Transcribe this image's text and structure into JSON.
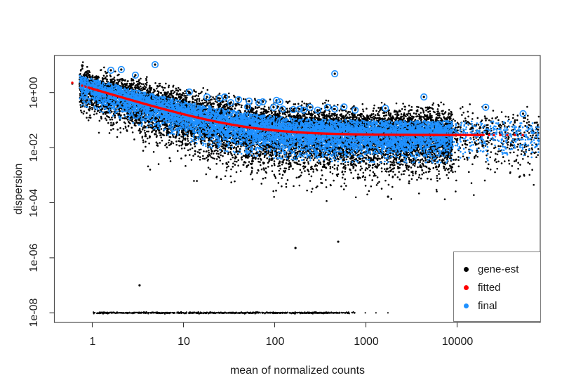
{
  "figure": {
    "kind": "dispersion estimates scatter plot (DESeq2 plotDispEsts style)",
    "background": "#ffffff",
    "border_color": "#4d4d4d",
    "tick_color": "#333333",
    "text_color": "#1c1c1c"
  },
  "axes": {
    "x": {
      "title": "mean of normalized counts",
      "scale": "log10",
      "range_log10": [
        -0.4154,
        4.9115
      ],
      "ticks": [
        {
          "value": 1,
          "label": "1"
        },
        {
          "value": 10,
          "label": "10"
        },
        {
          "value": 100,
          "label": "100"
        },
        {
          "value": 1000,
          "label": "1000"
        },
        {
          "value": 10000,
          "label": "10000"
        }
      ]
    },
    "y": {
      "title": "dispersion",
      "scale": "log10",
      "range_log10": [
        -8.3495,
        1.3444
      ],
      "ticks": [
        {
          "value": 1,
          "label": "1e+00"
        },
        {
          "value": 0.01,
          "label": "1e-02"
        },
        {
          "value": 0.0001,
          "label": "1e-04"
        },
        {
          "value": 1e-06,
          "label": "1e-06"
        },
        {
          "value": 1e-08,
          "label": "1e-08"
        }
      ]
    }
  },
  "legend": {
    "items": [
      {
        "label": "gene-est",
        "color": "#000000"
      },
      {
        "label": "fitted",
        "color": "#ff0000"
      },
      {
        "label": "final",
        "color": "#1e90ff"
      }
    ]
  },
  "chart_data": {
    "type": "scatter",
    "title": "",
    "xlabel": "mean of normalized counts",
    "ylabel": "dispersion",
    "x_scale": "log10",
    "y_scale": "log10",
    "xlim": [
      0.38,
      81000
    ],
    "ylim": [
      4.5e-09,
      22
    ],
    "x_ticks": [
      "1",
      "10",
      "100",
      "1000",
      "10000"
    ],
    "y_ticks": [
      "1e+00",
      "1e-02",
      "1e-04",
      "1e-06",
      "1e-08"
    ],
    "grid": false,
    "legend_position": "bottom-right",
    "seed": 42,
    "fitted_curve": {
      "name": "fitted",
      "color": "#ff0000",
      "model": "dispersion = a0 + a1 / mean",
      "a0": 0.0285,
      "a1": 1.35,
      "dense_mean_range": [
        0.91,
        19800
      ],
      "sparse_means": [
        0.604,
        0.774,
        0.845,
        22400,
        25300,
        29700,
        35500,
        43000,
        52500
      ],
      "dot_radius_px": 1.7
    },
    "gene_est_cloud": {
      "name": "gene-est",
      "color": "#000000",
      "n": 12000,
      "log10_mean_main_range": [
        -0.14,
        3.95
      ],
      "main_skew": 0.92,
      "right_tail_frac": 0.035,
      "log10_mean_tail_range": [
        3.95,
        4.9
      ],
      "sigma_up_dec": 0.42,
      "max_up_dec": 1.22,
      "sigma_down_dec": 0.62,
      "max_down_dec": 2.05,
      "low_tail_frac": 0.055,
      "low_tail_extra_dec": 1.35,
      "left_narrowing": [
        0.72,
        0.28,
        1.4
      ],
      "dot_radius_px": 1.3
    },
    "final_cloud": {
      "name": "final",
      "color": "#1e90ff",
      "n": 9000,
      "log10_mean_main_range": [
        -0.14,
        3.95
      ],
      "main_skew": 0.92,
      "right_tail_frac": 0.035,
      "log10_mean_tail_range": [
        3.95,
        4.9
      ],
      "sigma_up_dec": 0.26,
      "max_up_dec": 0.52,
      "sigma_down_dec": 0.4,
      "max_down_dec": 1.0,
      "low_tail_frac": 0,
      "low_tail_extra_dec": 0,
      "left_narrowing": [
        0.72,
        0.28,
        1.4
      ],
      "dot_radius_px": 1.3
    },
    "floor_points": {
      "description": "gene-wise estimates at the minimum dispersion floor",
      "color": "#000000",
      "n": 780,
      "dispersion": 1e-08,
      "jitter_dec": 0.012,
      "mean_dense_range": [
        1.03,
        258
      ],
      "dense_frac": 0.84,
      "mean_taper_range": [
        258,
        787
      ],
      "taper_pow": 1.8,
      "single_means": [
        985,
        1290,
        1745
      ],
      "dot_radius_px": 1.1
    },
    "outliers_circled": {
      "description": "dispersion outliers: black gene estimate with blue ring, not shrunk to the curve",
      "ring_color": "#1e90ff",
      "ring_radius_px": 4.3,
      "points_mean_dispersion": [
        [
          1.6,
          6.44
        ],
        [
          2.08,
          6.82
        ],
        [
          2.97,
          4.27
        ],
        [
          4.88,
          10.3
        ],
        [
          11.6,
          1.04
        ],
        [
          18.1,
          0.69
        ],
        [
          24.9,
          0.61
        ],
        [
          28.3,
          0.69
        ],
        [
          33.0,
          0.43
        ],
        [
          40.2,
          0.55
        ],
        [
          50.6,
          0.3
        ],
        [
          52.4,
          0.49
        ],
        [
          67.1,
          0.43
        ],
        [
          74.1,
          0.46
        ],
        [
          97.3,
          0.29
        ],
        [
          104.7,
          0.52
        ],
        [
          114,
          0.46
        ],
        [
          122.5,
          0.25
        ],
        [
          160,
          0.24
        ],
        [
          187,
          0.25
        ],
        [
          208,
          0.23
        ],
        [
          244,
          0.29
        ],
        [
          296,
          0.23
        ],
        [
          380,
          0.29
        ],
        [
          456,
          4.8
        ],
        [
          456,
          0.25
        ],
        [
          575,
          0.3
        ],
        [
          762,
          0.23
        ],
        [
          1637,
          0.27
        ],
        [
          4325,
          0.69
        ],
        [
          20593,
          0.29
        ],
        [
          52900,
          0.17
        ]
      ]
    },
    "singles": {
      "black_points_mean_dispersion": [
        [
          0.604,
          2.11
        ],
        [
          0.774,
          9.7
        ],
        [
          3.3,
          1e-07
        ],
        [
          169,
          2.26e-06
        ],
        [
          497,
          3.83e-06
        ],
        [
          1751,
          0.000165
        ]
      ],
      "blue_points_mean_dispersion": [
        [
          0.774,
          3.37
        ]
      ]
    }
  }
}
